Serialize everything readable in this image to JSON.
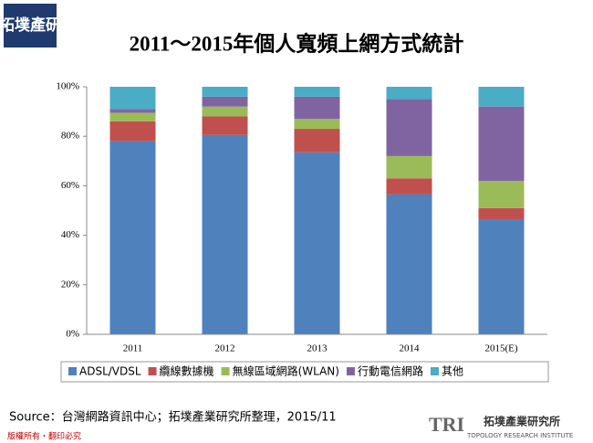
{
  "header": {
    "logo": "拓墣產研"
  },
  "chart_data": {
    "type": "stacked_bar",
    "title": "2011～2015年個人寬頻上網方式統計",
    "categories": [
      "2011",
      "2012",
      "2013",
      "2014",
      "2015(E)"
    ],
    "series": [
      {
        "name": "ADSL/VDSL",
        "color": "#4f81bd",
        "values": [
          78,
          80.5,
          73.5,
          56.5,
          46.5
        ]
      },
      {
        "name": "纜線數據機",
        "color": "#c0504d",
        "values": [
          8,
          7.5,
          9.5,
          6.5,
          4.5
        ]
      },
      {
        "name": "無線區域網路(WLAN)",
        "color": "#9bbb59",
        "values": [
          3.5,
          4,
          4,
          9,
          11
        ]
      },
      {
        "name": "行動電信網路",
        "color": "#8064a2",
        "values": [
          1.5,
          4,
          9,
          23,
          30
        ]
      },
      {
        "name": "其他",
        "color": "#4bacc6",
        "values": [
          9,
          4,
          4,
          5,
          8
        ]
      }
    ],
    "ylim": [
      0,
      100
    ],
    "yticks": [
      {
        "value": 0,
        "label": "0%"
      },
      {
        "value": 20,
        "label": "20%"
      },
      {
        "value": 40,
        "label": "40%"
      },
      {
        "value": 60,
        "label": "60%"
      },
      {
        "value": 80,
        "label": "80%"
      },
      {
        "value": 100,
        "label": "100%"
      }
    ],
    "legend": "bottom"
  },
  "footer": {
    "source": "Source：台灣網路資訊中心；拓墣產業研究所整理，2015/11",
    "copyright": "版權所有・翻印必究",
    "brand": "TRI",
    "org": "拓墣產業研究所",
    "org_en": "TOPOLOGY RESEARCH INSTITUTE"
  }
}
